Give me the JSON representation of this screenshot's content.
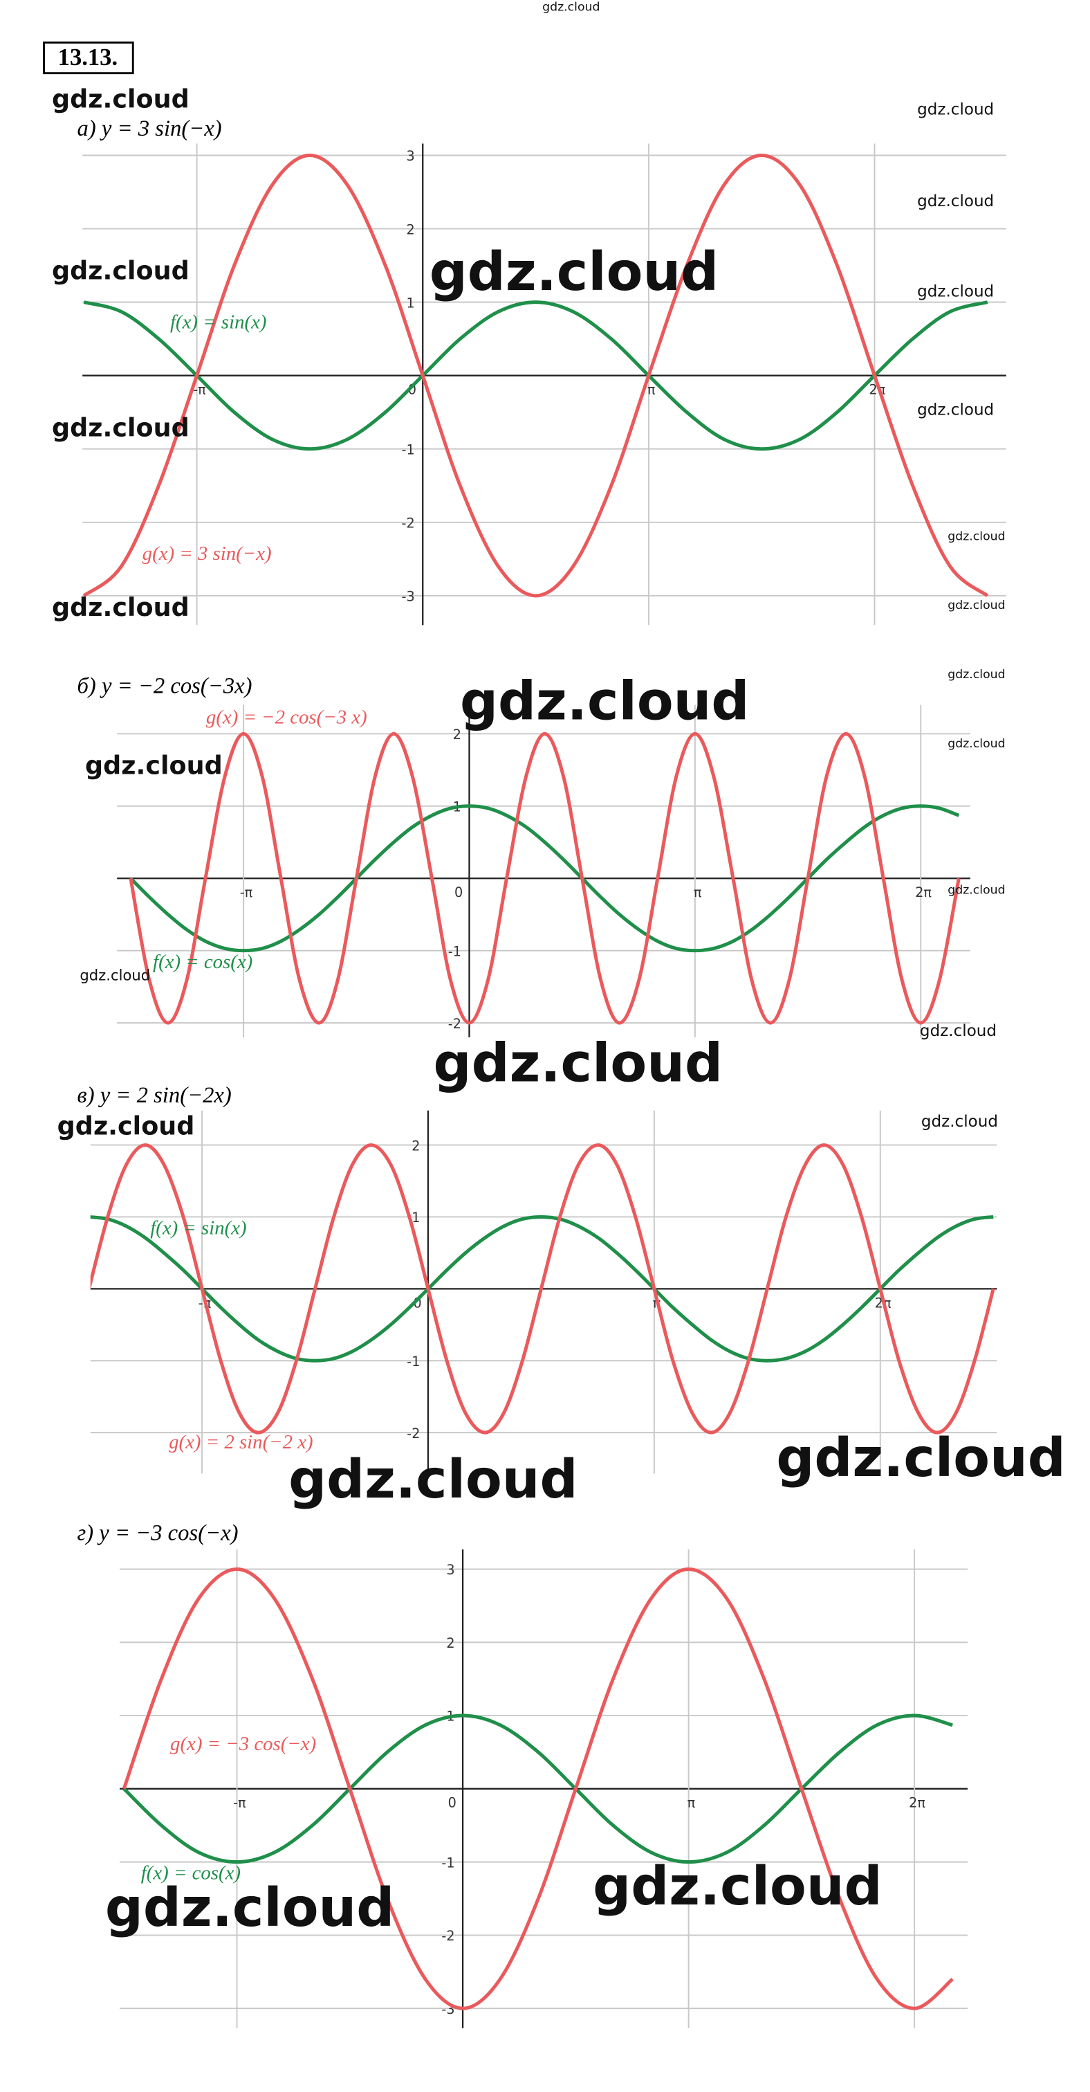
{
  "problem_number": "13.13.",
  "watermarks": [
    "gdz.cloud",
    "gdz.cloud",
    "gdz.cloud",
    "gdz.cloud",
    "gdz.cloud",
    "gdz.cloud",
    "gdz.cloud",
    "gdz.cloud",
    "gdz.cloud",
    "gdz.cloud",
    "gdz.cloud",
    "gdz.cloud",
    "gdz.cloud",
    "gdz.cloud",
    "gdz.cloud",
    "gdz.cloud",
    "gdz.cloud",
    "gdz.cloud",
    "gdz.cloud",
    "gdz.cloud",
    "gdz.cloud",
    "gdz.cloud",
    "gdz.cloud",
    "gdz.cloud",
    "gdz.cloud",
    "gdz.cloud",
    "gdz.cloud"
  ],
  "chart_data": [
    {
      "type": "line",
      "title": "а) y = 3 sin(−x)",
      "grid": true,
      "xlim": [
        -4.73,
        8.11
      ],
      "ylim": [
        -3.4,
        3.16
      ],
      "xticks": [
        {
          "value": -3.14,
          "label": "-π"
        },
        0,
        {
          "value": 3.14,
          "label": "π"
        },
        {
          "value": 6.28,
          "label": "2π"
        }
      ],
      "yticks": [
        -3,
        -2,
        -1,
        0,
        1,
        2,
        3
      ],
      "x": [
        -4.71,
        -4.19,
        -3.67,
        -3.14,
        -2.62,
        -2.09,
        -1.57,
        -1.05,
        -0.52,
        0,
        0.52,
        1.05,
        1.57,
        2.09,
        2.62,
        3.14,
        3.67,
        4.19,
        4.71,
        5.24,
        5.76,
        6.28,
        6.81,
        7.33,
        7.85
      ],
      "series": [
        {
          "name": "f(x) = sin(x)",
          "color": "#1f8f4a",
          "values": [
            1,
            0.87,
            0.5,
            0,
            -0.5,
            -0.87,
            -1,
            -0.87,
            -0.5,
            0,
            0.5,
            0.87,
            1,
            0.87,
            0.5,
            0,
            -0.5,
            -0.87,
            -1,
            -0.87,
            -0.5,
            0,
            0.5,
            0.87,
            1
          ]
        },
        {
          "name": "g(x) = 3 sin(−x)",
          "color": "#ea5a5c",
          "values": [
            -3,
            -2.6,
            -1.5,
            0,
            1.5,
            2.6,
            3,
            2.6,
            1.5,
            0,
            -1.5,
            -2.6,
            -3,
            -2.6,
            -1.5,
            0,
            1.5,
            2.6,
            3,
            2.6,
            1.5,
            0,
            -1.5,
            -2.6,
            -3
          ]
        }
      ]
    },
    {
      "type": "line",
      "title": "б) y = −2 cos(−3x)",
      "grid": true,
      "xlim": [
        -4.9,
        6.97
      ],
      "ylim": [
        -2.2,
        2.4
      ],
      "xticks": [
        {
          "value": -3.14,
          "label": "-π"
        },
        0,
        {
          "value": 3.14,
          "label": "π"
        },
        {
          "value": 6.28,
          "label": "2π"
        }
      ],
      "yticks": [
        -2,
        -1,
        0,
        1,
        2
      ],
      "x": [
        -4.71,
        -4.45,
        -4.19,
        -3.93,
        -3.67,
        -3.4,
        -3.14,
        -2.88,
        -2.62,
        -2.36,
        -2.09,
        -1.83,
        -1.57,
        -1.31,
        -1.05,
        -0.79,
        -0.52,
        -0.26,
        0,
        0.26,
        0.52,
        0.79,
        1.05,
        1.31,
        1.57,
        1.83,
        2.09,
        2.36,
        2.62,
        2.88,
        3.14,
        3.4,
        3.67,
        3.93,
        4.19,
        4.45,
        4.71,
        4.97,
        5.24,
        5.5,
        5.76,
        6.02,
        6.28,
        6.54,
        6.81
      ],
      "series": [
        {
          "name": "f(x) = cos(x)",
          "color": "#1f8f4a",
          "values": [
            0,
            -0.26,
            -0.5,
            -0.71,
            -0.87,
            -0.97,
            -1,
            -0.97,
            -0.87,
            -0.71,
            -0.5,
            -0.26,
            0,
            0.26,
            0.5,
            0.71,
            0.87,
            0.97,
            1,
            0.97,
            0.87,
            0.71,
            0.5,
            0.26,
            0,
            -0.26,
            -0.5,
            -0.71,
            -0.87,
            -0.97,
            -1,
            -0.97,
            -0.87,
            -0.71,
            -0.5,
            -0.26,
            0,
            0.26,
            0.5,
            0.71,
            0.87,
            0.97,
            1,
            0.97,
            0.87
          ]
        },
        {
          "name": "g(x) = −2 cos(−3 x)",
          "color": "#ea5a5c",
          "values": [
            0,
            -1.41,
            -2,
            -1.41,
            0,
            1.41,
            2,
            1.41,
            0,
            -1.41,
            -2,
            -1.41,
            0,
            1.41,
            2,
            1.41,
            0,
            -1.41,
            -2,
            -1.41,
            0,
            1.41,
            2,
            1.41,
            0,
            -1.41,
            -2,
            -1.41,
            0,
            1.41,
            2,
            1.41,
            0,
            -1.41,
            -2,
            -1.41,
            0,
            1.41,
            2,
            1.41,
            0,
            -1.41,
            -2,
            -1.41,
            0
          ]
        }
      ]
    },
    {
      "type": "line",
      "title": "в) y = 2 sin(−2x)",
      "grid": true,
      "xlim": [
        -4.69,
        7.9
      ],
      "ylim": [
        -2.57,
        2.48
      ],
      "xticks": [
        {
          "value": -3.14,
          "label": "-π"
        },
        0,
        {
          "value": 3.14,
          "label": "π"
        },
        {
          "value": 6.28,
          "label": "2π"
        }
      ],
      "yticks": [
        -2,
        -1,
        0,
        1,
        2
      ],
      "x": [
        -4.71,
        -4.45,
        -4.19,
        -3.93,
        -3.67,
        -3.4,
        -3.14,
        -2.88,
        -2.62,
        -2.36,
        -2.09,
        -1.83,
        -1.57,
        -1.31,
        -1.05,
        -0.79,
        -0.52,
        -0.26,
        0,
        0.26,
        0.52,
        0.79,
        1.05,
        1.31,
        1.57,
        1.83,
        2.09,
        2.36,
        2.62,
        2.88,
        3.14,
        3.4,
        3.67,
        3.93,
        4.19,
        4.45,
        4.71,
        4.97,
        5.24,
        5.5,
        5.76,
        6.02,
        6.28,
        6.54,
        6.81,
        7.07,
        7.33,
        7.59,
        7.85
      ],
      "series": [
        {
          "name": "f(x) = sin(x)",
          "color": "#1f8f4a",
          "values": [
            1,
            0.97,
            0.87,
            0.71,
            0.5,
            0.26,
            0,
            -0.26,
            -0.5,
            -0.71,
            -0.87,
            -0.97,
            -1,
            -0.97,
            -0.87,
            -0.71,
            -0.5,
            -0.26,
            0,
            0.26,
            0.5,
            0.71,
            0.87,
            0.97,
            1,
            0.97,
            0.87,
            0.71,
            0.5,
            0.26,
            0,
            -0.26,
            -0.5,
            -0.71,
            -0.87,
            -0.97,
            -1,
            -0.97,
            -0.87,
            -0.71,
            -0.5,
            -0.26,
            0,
            0.26,
            0.5,
            0.71,
            0.87,
            0.97,
            1
          ]
        },
        {
          "name": "g(x) = 2 sin(−2 x)",
          "color": "#ea5a5c",
          "values": [
            0,
            1,
            1.73,
            2,
            1.73,
            1,
            0,
            -1,
            -1.73,
            -2,
            -1.73,
            -1,
            0,
            1,
            1.73,
            2,
            1.73,
            1,
            0,
            -1,
            -1.73,
            -2,
            -1.73,
            -1,
            0,
            1,
            1.73,
            2,
            1.73,
            1,
            0,
            -1,
            -1.73,
            -2,
            -1.73,
            -1,
            0,
            1,
            1.73,
            2,
            1.73,
            1,
            0,
            -1,
            -1.73,
            -2,
            -1.73,
            -1,
            0
          ]
        }
      ]
    },
    {
      "type": "line",
      "title": "г) y = −3 cos(−x)",
      "grid": true,
      "xlim": [
        -4.77,
        7.02
      ],
      "ylim": [
        -3.27,
        3.27
      ],
      "xticks": [
        {
          "value": -3.14,
          "label": "-π"
        },
        0,
        {
          "value": 3.14,
          "label": "π"
        },
        {
          "value": 6.28,
          "label": "2π"
        }
      ],
      "yticks": [
        -3,
        -2,
        -1,
        0,
        1,
        2,
        3
      ],
      "x": [
        -4.71,
        -4.19,
        -3.67,
        -3.14,
        -2.62,
        -2.09,
        -1.57,
        -1.05,
        -0.52,
        0,
        0.52,
        1.05,
        1.57,
        2.09,
        2.62,
        3.14,
        3.67,
        4.19,
        4.71,
        5.24,
        5.76,
        6.28,
        6.81
      ],
      "series": [
        {
          "name": "f(x) = cos(x)",
          "color": "#1f8f4a",
          "values": [
            0,
            -0.5,
            -0.87,
            -1,
            -0.87,
            -0.5,
            0,
            0.5,
            0.87,
            1,
            0.87,
            0.5,
            0,
            -0.5,
            -0.87,
            -1,
            -0.87,
            -0.5,
            0,
            0.5,
            0.87,
            1,
            0.87
          ]
        },
        {
          "name": "g(x) = −3 cos(−x)",
          "color": "#ea5a5c",
          "values": [
            0,
            1.5,
            2.6,
            3,
            2.6,
            1.5,
            0,
            -1.5,
            -2.6,
            -3,
            -2.6,
            -1.5,
            0,
            1.5,
            2.6,
            3,
            2.6,
            1.5,
            0,
            -1.5,
            -2.6,
            -3,
            -2.6
          ]
        }
      ]
    }
  ]
}
